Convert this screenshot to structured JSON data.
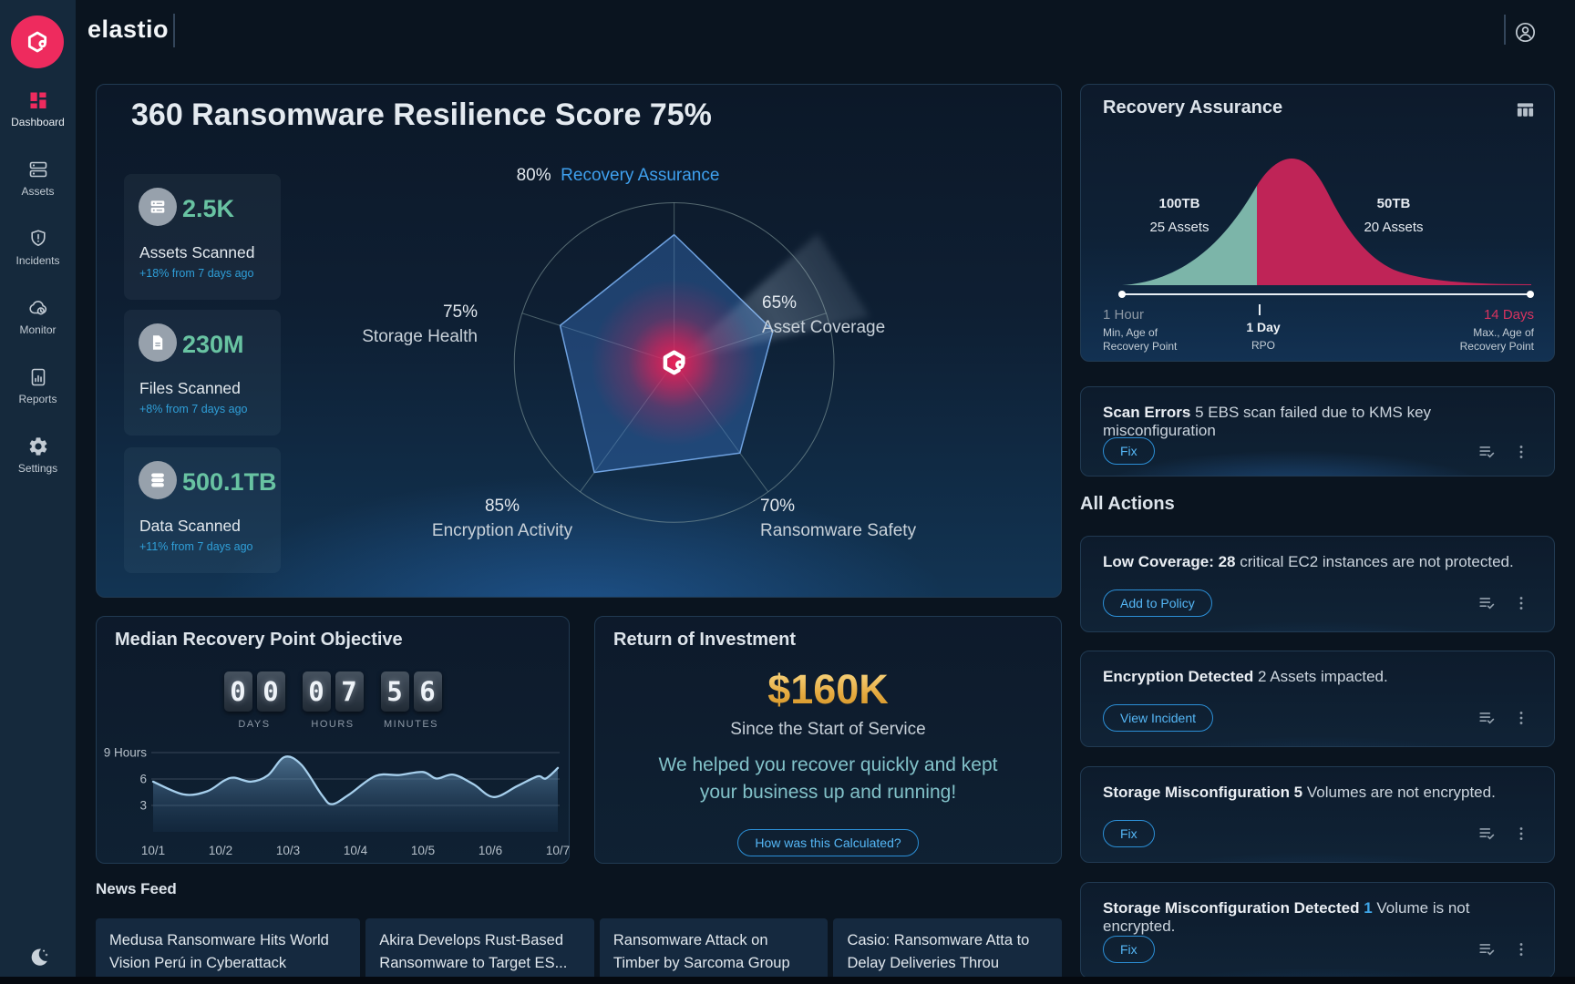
{
  "brand": {
    "name": "elastio",
    "accent_color": "#ee2b5e"
  },
  "header": {
    "user_icon": "user-icon"
  },
  "sidebar": {
    "items": [
      {
        "label": "Dashboard",
        "icon": "dashboard-icon",
        "active": true
      },
      {
        "label": "Assets",
        "icon": "assets-icon",
        "active": false
      },
      {
        "label": "Incidents",
        "icon": "incidents-icon",
        "active": false
      },
      {
        "label": "Monitor",
        "icon": "monitor-icon",
        "active": false
      },
      {
        "label": "Reports",
        "icon": "reports-icon",
        "active": false
      },
      {
        "label": "Settings",
        "icon": "settings-icon",
        "active": false
      }
    ],
    "theme_toggle_icon": "moon-icon"
  },
  "resilience": {
    "title": "360 Ransomware Resilience Score 75%",
    "stats": [
      {
        "icon": "server-icon",
        "value": "2.5K",
        "label": "Assets Scanned",
        "delta": "+18% from 7 days ago"
      },
      {
        "icon": "file-icon",
        "value": "230M",
        "label": "Files Scanned",
        "delta": "+8% from 7 days ago"
      },
      {
        "icon": "database-icon",
        "value": "500.1TB",
        "label": "Data Scanned",
        "delta": "+11% from 7 days ago"
      }
    ],
    "chart_data": {
      "type": "radar",
      "max": 100,
      "axes": [
        {
          "label": "Recovery Assurance",
          "value": 80,
          "value_label": "80%",
          "highlighted": true
        },
        {
          "label": "Asset Coverage",
          "value": 65,
          "value_label": "65%",
          "highlighted": false
        },
        {
          "label": "Ransomware Safety",
          "value": 70,
          "value_label": "70%",
          "highlighted": false
        },
        {
          "label": "Encryption Activity",
          "value": 85,
          "value_label": "85%",
          "highlighted": false
        },
        {
          "label": "Storage Health",
          "value": 75,
          "value_label": "75%",
          "highlighted": false
        }
      ],
      "fill_color": "rgba(58,118,200,0.40)",
      "stroke_color": "#6fa2e0",
      "highlight_label_color": "#3fa0ee",
      "center_glow_color": "#f21e56"
    }
  },
  "rpo": {
    "title": "Median Recovery Point Objective",
    "clock": {
      "days": "00",
      "hours": "07",
      "minutes": "56",
      "days_label": "DAYS",
      "hours_label": "HOURS",
      "minutes_label": "MINUTES"
    },
    "chart_data": {
      "type": "area",
      "unit": "hours",
      "x_tick_labels": [
        "10/1",
        "10/2",
        "10/3",
        "10/4",
        "10/5",
        "10/6",
        "10/7"
      ],
      "y_ticks": [
        {
          "label": "9 Hours",
          "value": 9
        },
        {
          "label": "6",
          "value": 6
        },
        {
          "label": "3",
          "value": 3
        }
      ],
      "y_range": [
        0,
        9
      ],
      "points": [
        [
          0,
          5.7
        ],
        [
          0.45,
          4.25
        ],
        [
          0.8,
          4.6
        ],
        [
          1.05,
          5.8
        ],
        [
          1.2,
          6.15
        ],
        [
          1.45,
          5.7
        ],
        [
          1.7,
          6.4
        ],
        [
          1.95,
          8.5
        ],
        [
          2.2,
          7.6
        ],
        [
          2.5,
          4.2
        ],
        [
          2.65,
          3.15
        ],
        [
          2.9,
          4.2
        ],
        [
          3.3,
          6.35
        ],
        [
          3.65,
          6.45
        ],
        [
          4.0,
          6.8
        ],
        [
          4.2,
          6.05
        ],
        [
          4.45,
          6.5
        ],
        [
          4.75,
          5.4
        ],
        [
          5.05,
          3.95
        ],
        [
          5.4,
          5.2
        ],
        [
          5.7,
          6.3
        ],
        [
          5.82,
          6.05
        ],
        [
          6.0,
          7.25
        ]
      ],
      "line_color": "#a6cfec",
      "fill_color": "#5b89ad"
    }
  },
  "roi": {
    "title": "Return of Investment",
    "amount": "$160K",
    "subtitle": "Since the Start of Service",
    "message_line1": "We helped you recover quickly and kept",
    "message_line2": "your business up and running!",
    "button_label": "How was this Calculated?"
  },
  "news": {
    "title": "News Feed",
    "items": [
      {
        "title": "Medusa Ransomware Hits World Vision Perú in Cyberattack"
      },
      {
        "title": "Akira Develops Rust-Based Ransomware to Target ES..."
      },
      {
        "title": "Ransomware Attack on Timber by Sarcoma Group"
      },
      {
        "title": "Casio: Ransomware Atta to Delay Deliveries Throu"
      }
    ]
  },
  "recovery_assurance": {
    "title": "Recovery Assurance",
    "table_icon": "table-icon",
    "chart_data": {
      "type": "distribution-area",
      "segments": [
        {
          "label": "100TB",
          "sublabel": "25 Assets",
          "color": "#7cb5a9"
        },
        {
          "label": "50TB",
          "sublabel": "20 Assets",
          "color": "#bf2457"
        }
      ],
      "timeline": {
        "start": {
          "value": "1 Hour",
          "caption_line1": "Min, Age of",
          "caption_line2": "Recovery Point"
        },
        "mid": {
          "value": "1 Day",
          "caption_line1": "RPO"
        },
        "end": {
          "value": "14 Days",
          "caption_line1": "Max., Age of",
          "caption_line2": "Recovery Point",
          "value_color": "#d8335f"
        }
      }
    }
  },
  "scan_errors": {
    "bold": "Scan Errors",
    "rest": " 5 EBS scan failed due to KMS key misconfiguration",
    "button_label": "Fix"
  },
  "actions": {
    "title": "All Actions",
    "items": [
      {
        "bold": "Low Coverage: 28",
        "rest": " critical EC2 instances are not protected.",
        "button_label": "Add to Policy"
      },
      {
        "bold": "Encryption Detected",
        "rest": " 2 Assets impacted.",
        "button_label": "View Incident"
      },
      {
        "bold": "Storage Misconfiguration 5",
        "rest": " Volumes are not encrypted.",
        "button_label": "Fix"
      },
      {
        "bold": "Storage Misconfiguration Detected",
        "highlight": " 1",
        "rest": " Volume is not encrypted.",
        "button_label": "Fix"
      }
    ]
  }
}
